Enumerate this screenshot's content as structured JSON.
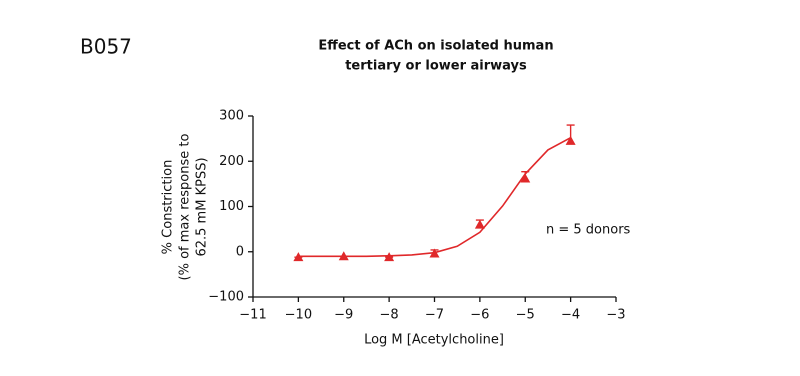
{
  "panel_label": "B057",
  "chart_data": {
    "type": "scatter",
    "title": [
      "Effect of ACh on isolated human",
      "tertiary or lower airways"
    ],
    "x_label": "Log M [Acetylcholine]",
    "y_label": [
      "% Constriction",
      "(% of max response to",
      "62.5 mM KPSS)"
    ],
    "annotation": "n = 5 donors",
    "color": "#e0282a",
    "x": [
      -10,
      -9,
      -8,
      -7,
      -6,
      -5,
      -4
    ],
    "values": [
      -12,
      -10,
      -12,
      -4,
      60,
      162,
      245
    ],
    "errors": [
      0,
      0,
      0,
      8,
      10,
      15,
      35
    ],
    "fit": {
      "x": [
        -10,
        -9.5,
        -9,
        -8.5,
        -8,
        -7.5,
        -7,
        -6.5,
        -6,
        -5.5,
        -5,
        -4.5,
        -4
      ],
      "values": [
        -10,
        -10,
        -10,
        -10,
        -9,
        -7,
        -2,
        12,
        43,
        101,
        172,
        225,
        252
      ]
    },
    "xlim": [
      -11,
      -3
    ],
    "xticks": [
      {
        "value": -11,
        "label": "−11"
      },
      {
        "value": -10,
        "label": "−10"
      },
      {
        "value": -9,
        "label": "−9"
      },
      {
        "value": -8,
        "label": "−8"
      },
      {
        "value": -7,
        "label": "−7"
      },
      {
        "value": -6,
        "label": "−6"
      },
      {
        "value": -5,
        "label": "−5"
      },
      {
        "value": -4,
        "label": "−4"
      },
      {
        "value": -3,
        "label": "−3"
      }
    ],
    "ylim": [
      -100,
      300
    ],
    "yticks": [
      {
        "value": -100,
        "label": "−100"
      },
      0,
      100,
      200,
      300
    ]
  }
}
